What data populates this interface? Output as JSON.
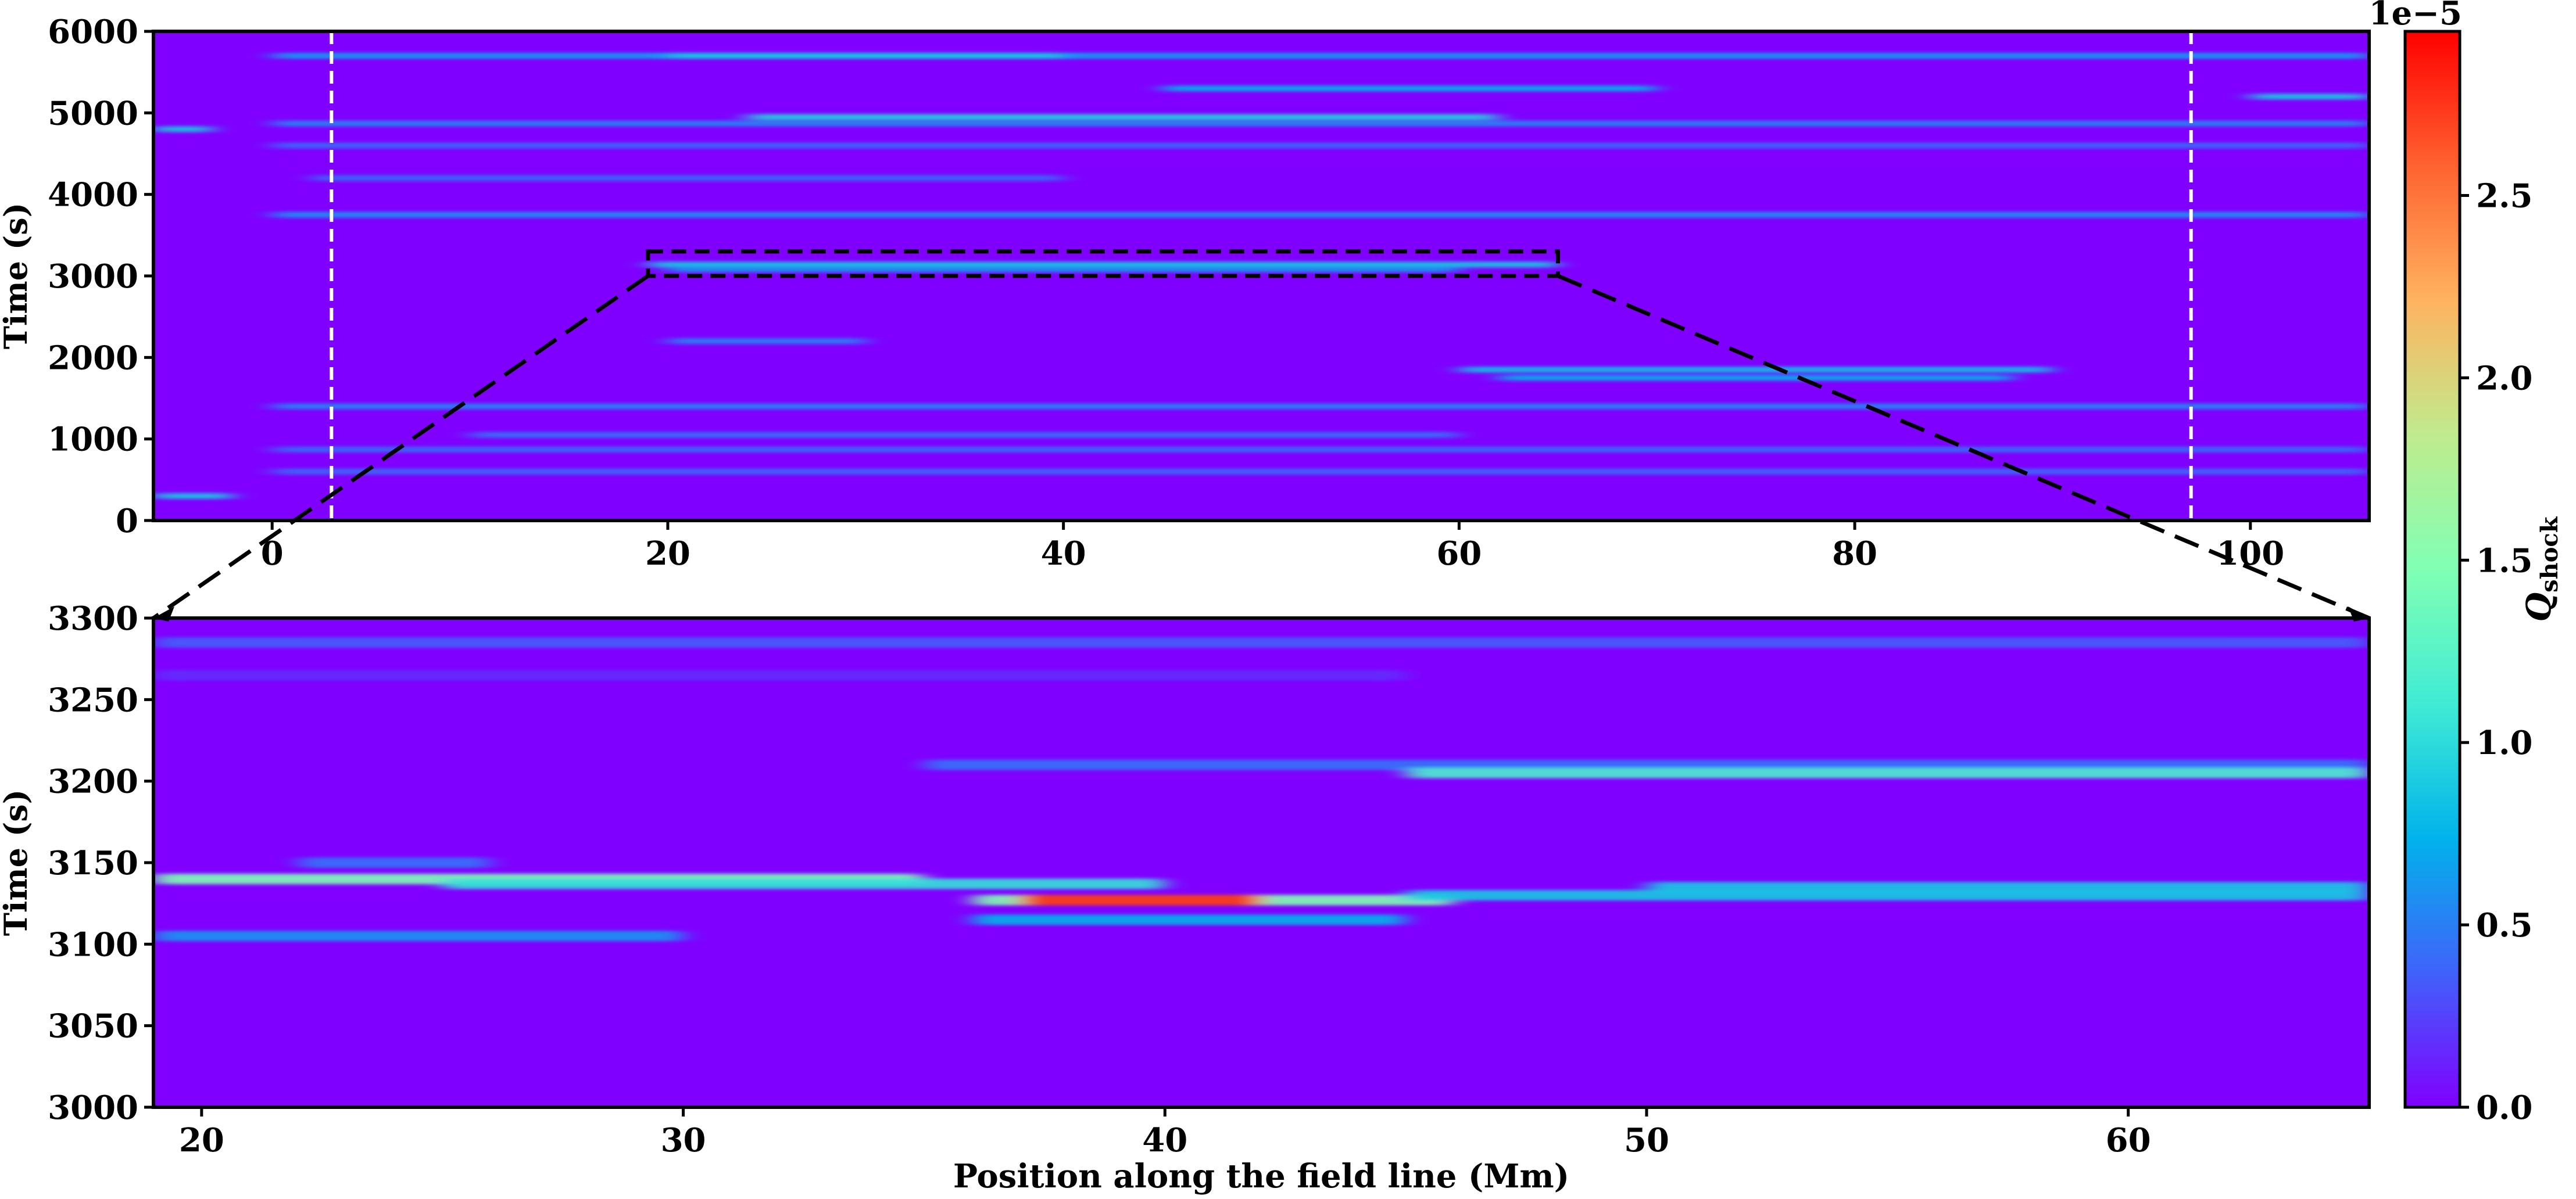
{
  "chart_data": [
    {
      "type": "heatmap",
      "xlim": [
        -6,
        106
      ],
      "ylim": [
        0,
        6000
      ],
      "xticks": [
        0,
        20,
        40,
        60,
        80,
        100
      ],
      "yticks": [
        0,
        1000,
        2000,
        3000,
        4000,
        5000,
        6000
      ],
      "xtick_labels": [
        "0",
        "20",
        "40",
        "60",
        "80",
        "100"
      ],
      "ytick_labels": [
        "0",
        "1000",
        "2000",
        "3000",
        "4000",
        "5000",
        "6000"
      ],
      "ylabel": "Time (s)",
      "vlines": [
        3,
        97
      ],
      "zoom_box": {
        "x": [
          19,
          65
        ],
        "y": [
          3000,
          3300
        ]
      },
      "streaks": [
        {
          "x": [
            0,
            106
          ],
          "y": 5700,
          "level": 0.22
        },
        {
          "x": [
            20,
            40
          ],
          "y": 5700,
          "level": 0.3
        },
        {
          "x": [
            45,
            70
          ],
          "y": 5300,
          "level": 0.25
        },
        {
          "x": [
            24,
            62
          ],
          "y": 4950,
          "level": 0.32
        },
        {
          "x": [
            0,
            106
          ],
          "y": 4870,
          "level": 0.18
        },
        {
          "x": [
            0,
            106
          ],
          "y": 4600,
          "level": 0.14
        },
        {
          "x": [
            2,
            40
          ],
          "y": 4200,
          "level": 0.14
        },
        {
          "x": [
            0,
            106
          ],
          "y": 3750,
          "level": 0.2
        },
        {
          "x": [
            19,
            65
          ],
          "y": 3140,
          "level": 0.3
        },
        {
          "x": [
            20,
            60
          ],
          "y": 3080,
          "level": 0.2
        },
        {
          "x": [
            20,
            30
          ],
          "y": 2200,
          "level": 0.18
        },
        {
          "x": [
            60,
            90
          ],
          "y": 1850,
          "level": 0.28
        },
        {
          "x": [
            62,
            88
          ],
          "y": 1750,
          "level": 0.25
        },
        {
          "x": [
            0,
            106
          ],
          "y": 1400,
          "level": 0.18
        },
        {
          "x": [
            10,
            60
          ],
          "y": 1050,
          "level": 0.15
        },
        {
          "x": [
            0,
            106
          ],
          "y": 870,
          "level": 0.14
        },
        {
          "x": [
            0,
            106
          ],
          "y": 600,
          "level": 0.14
        },
        {
          "x": [
            -6,
            -2
          ],
          "y": 300,
          "level": 0.3
        },
        {
          "x": [
            -6,
            -3
          ],
          "y": 4800,
          "level": 0.3
        },
        {
          "x": [
            100,
            106
          ],
          "y": 5200,
          "level": 0.3
        }
      ]
    },
    {
      "type": "heatmap",
      "xlim": [
        19,
        65
      ],
      "ylim": [
        3000,
        3300
      ],
      "xticks": [
        20,
        30,
        40,
        50,
        60
      ],
      "yticks": [
        3000,
        3050,
        3100,
        3150,
        3200,
        3250,
        3300
      ],
      "xtick_labels": [
        "20",
        "30",
        "40",
        "50",
        "60"
      ],
      "ytick_labels": [
        "3000",
        "3050",
        "3100",
        "3150",
        "3200",
        "3250",
        "3300"
      ],
      "xlabel": "Position along the field line (Mm)",
      "ylabel": "Time (s)",
      "streaks": [
        {
          "x": [
            19,
            65
          ],
          "y": 3285,
          "level": 0.12
        },
        {
          "x": [
            19,
            45
          ],
          "y": 3265,
          "level": 0.06
        },
        {
          "x": [
            35,
            65
          ],
          "y": 3210,
          "level": 0.15
        },
        {
          "x": [
            45,
            65
          ],
          "y": 3205,
          "level": 0.4
        },
        {
          "x": [
            19,
            35
          ],
          "y": 3140,
          "level": 0.5
        },
        {
          "x": [
            25,
            40
          ],
          "y": 3137,
          "level": 0.35
        },
        {
          "x": [
            36,
            46
          ],
          "y": 3127,
          "level": 0.5
        },
        {
          "x": [
            37,
            42
          ],
          "y": 3127,
          "level": 0.95
        },
        {
          "x": [
            45,
            65
          ],
          "y": 3130,
          "level": 0.3
        },
        {
          "x": [
            50,
            65
          ],
          "y": 3135,
          "level": 0.3
        },
        {
          "x": [
            36,
            45
          ],
          "y": 3115,
          "level": 0.25
        },
        {
          "x": [
            19,
            30
          ],
          "y": 3105,
          "level": 0.2
        },
        {
          "x": [
            22,
            26
          ],
          "y": 3150,
          "level": 0.15
        }
      ]
    }
  ],
  "colorbar": {
    "label_main": "Q",
    "label_sub": "shock",
    "offset_label": "1e−5",
    "range": [
      0,
      2.95
    ],
    "ticks": [
      0.0,
      0.5,
      1.0,
      1.5,
      2.0,
      2.5
    ],
    "tick_labels": [
      "0.0",
      "0.5",
      "1.0",
      "1.5",
      "2.0",
      "2.5"
    ],
    "colormap": "rainbow",
    "colors": [
      "#8000ff",
      "#4062fa",
      "#01b3eb",
      "#40ecd4",
      "#81ffb4",
      "#c0eb8d",
      "#ffb360",
      "#ff6230",
      "#ff0000"
    ]
  }
}
